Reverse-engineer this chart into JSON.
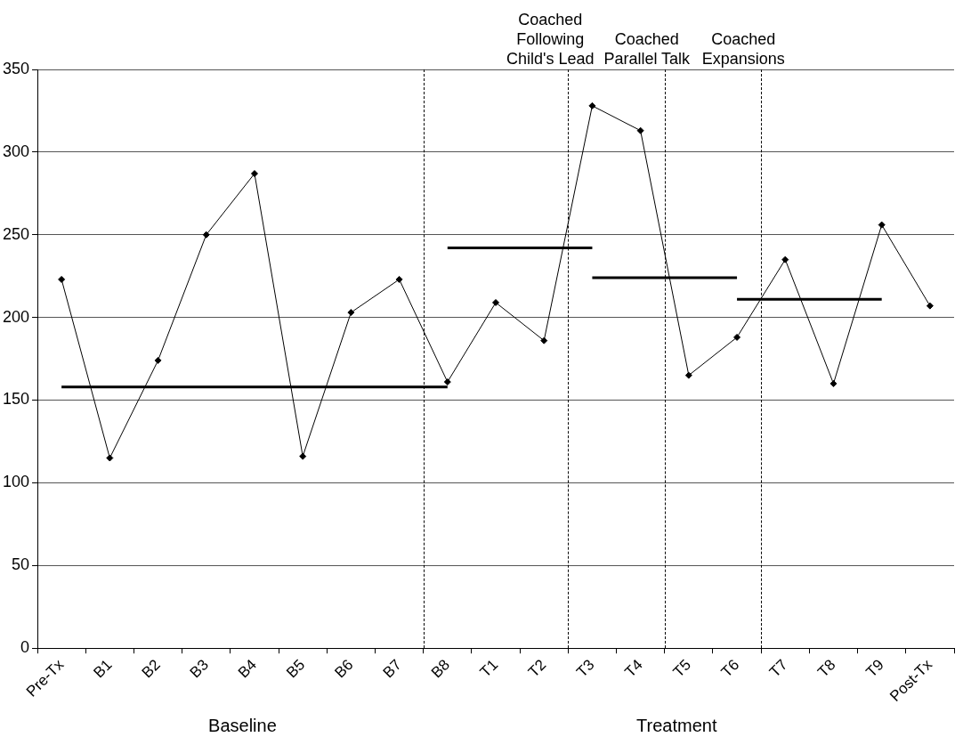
{
  "chart_data": {
    "type": "line",
    "categories": [
      "Pre-Tx",
      "B1",
      "B2",
      "B3",
      "B4",
      "B5",
      "B6",
      "B7",
      "B8",
      "T1",
      "T2",
      "T3",
      "T4",
      "T5",
      "T6",
      "T7",
      "T8",
      "T9",
      "Post-Tx"
    ],
    "series": [
      {
        "color": "#000000",
        "marker": "diamond",
        "values": [
          223,
          115,
          174,
          250,
          287,
          116,
          203,
          223,
          161,
          209,
          186,
          328,
          313,
          165,
          188,
          235,
          160,
          256,
          207
        ]
      },
      {
        "color": "#000000",
        "marker": "none",
        "values": [
          158,
          158,
          158,
          158,
          158,
          158,
          158,
          158,
          158,
          null,
          null,
          null,
          null,
          null,
          null,
          null,
          null,
          null,
          null
        ]
      },
      {
        "color": "#000000",
        "marker": "none",
        "values": [
          null,
          null,
          null,
          null,
          null,
          null,
          null,
          null,
          242,
          242,
          242,
          242,
          null,
          null,
          null,
          null,
          null,
          null,
          null
        ]
      },
      {
        "color": "#000000",
        "marker": "none",
        "values": [
          null,
          null,
          null,
          null,
          null,
          null,
          null,
          null,
          null,
          null,
          null,
          224,
          224,
          224,
          224,
          null,
          null,
          null,
          null
        ]
      },
      {
        "color": "#000000",
        "marker": "none",
        "values": [
          null,
          null,
          null,
          null,
          null,
          null,
          null,
          null,
          null,
          null,
          null,
          null,
          null,
          null,
          211,
          211,
          211,
          211,
          null
        ]
      }
    ],
    "ylim": [
      0,
      350
    ],
    "yticks": [
      0,
      50,
      100,
      150,
      200,
      250,
      300,
      350
    ],
    "grid": "y",
    "legend": false,
    "annotations": [
      "Baseline",
      "Treatment",
      "Coached\nFollowing\nChild's Lead",
      "Coached\nParallel Talk",
      "Coached\nExpansions"
    ]
  }
}
